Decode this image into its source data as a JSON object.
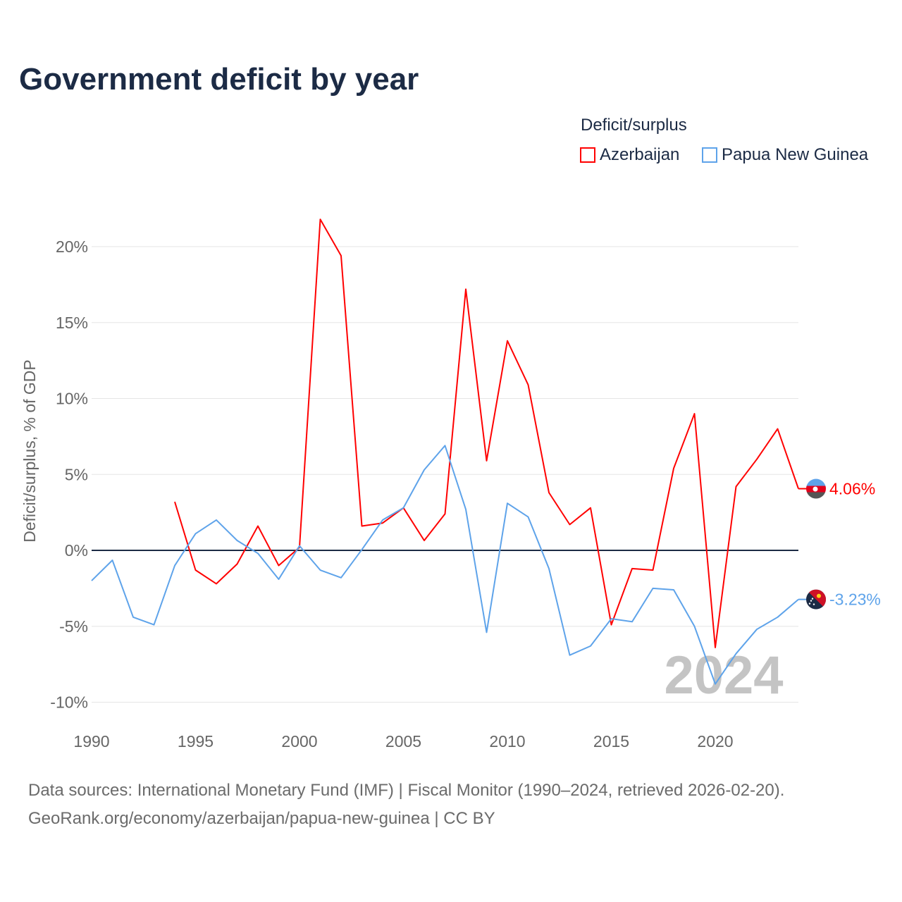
{
  "chart_data": {
    "type": "line",
    "title": "Government deficit by year",
    "ylabel": "Deficit/surplus, % of GDP",
    "xlabel": "",
    "xlim": [
      1990,
      2024
    ],
    "ylim": [
      -10,
      22
    ],
    "yticks": [
      -10,
      -5,
      0,
      5,
      10,
      15,
      20
    ],
    "ytick_labels": [
      "-10%",
      "-5%",
      "0%",
      "5%",
      "10%",
      "15%",
      "20%"
    ],
    "xticks": [
      1990,
      1995,
      2000,
      2005,
      2010,
      2015,
      2020
    ],
    "xtick_labels": [
      "1990",
      "1995",
      "2000",
      "2005",
      "2010",
      "2015",
      "2020"
    ],
    "grid": true,
    "legend_title": "Deficit/surplus",
    "legend_position": "top-right",
    "watermark": "2024",
    "series": [
      {
        "name": "Azerbaijan",
        "color": "#ff0000",
        "end_label": "4.06%",
        "x": [
          1994,
          1995,
          1996,
          1997,
          1998,
          1999,
          2000,
          2001,
          2002,
          2003,
          2004,
          2005,
          2006,
          2007,
          2008,
          2009,
          2010,
          2011,
          2012,
          2013,
          2014,
          2015,
          2016,
          2017,
          2018,
          2019,
          2020,
          2021,
          2022,
          2023,
          2024
        ],
        "values": [
          3.2,
          -1.3,
          -2.2,
          -0.9,
          1.6,
          -1.0,
          0.2,
          21.8,
          19.4,
          1.6,
          1.8,
          2.8,
          0.65,
          2.4,
          17.2,
          5.9,
          13.8,
          10.9,
          3.8,
          1.7,
          2.8,
          -4.9,
          -1.2,
          -1.3,
          5.4,
          9.0,
          -6.4,
          4.2,
          6.0,
          8.0,
          4.06
        ]
      },
      {
        "name": "Papua New Guinea",
        "color": "#5ea3ea",
        "end_label": "-3.23%",
        "x": [
          1990,
          1991,
          1992,
          1993,
          1994,
          1995,
          1996,
          1997,
          1998,
          1999,
          2000,
          2001,
          2002,
          2003,
          2004,
          2005,
          2006,
          2007,
          2008,
          2009,
          2010,
          2011,
          2012,
          2013,
          2014,
          2015,
          2016,
          2017,
          2018,
          2019,
          2020,
          2021,
          2022,
          2023,
          2024
        ],
        "values": [
          -2.0,
          -0.65,
          -4.4,
          -4.9,
          -1.0,
          1.1,
          2.0,
          0.65,
          -0.2,
          -1.9,
          0.3,
          -1.3,
          -1.8,
          0.05,
          2.0,
          2.8,
          5.3,
          6.9,
          2.7,
          -5.4,
          3.1,
          2.2,
          -1.2,
          -6.9,
          -6.3,
          -4.5,
          -4.7,
          -2.5,
          -2.6,
          -5.0,
          -8.8,
          -6.8,
          -5.2,
          -4.4,
          -3.23
        ]
      }
    ]
  },
  "footer": {
    "source": "Data sources: International Monetary Fund (IMF) | Fiscal Monitor (1990–2024, retrieved 2026-02-20).",
    "link": "GeoRank.org/economy/azerbaijan/papua-new-guinea | CC BY"
  }
}
